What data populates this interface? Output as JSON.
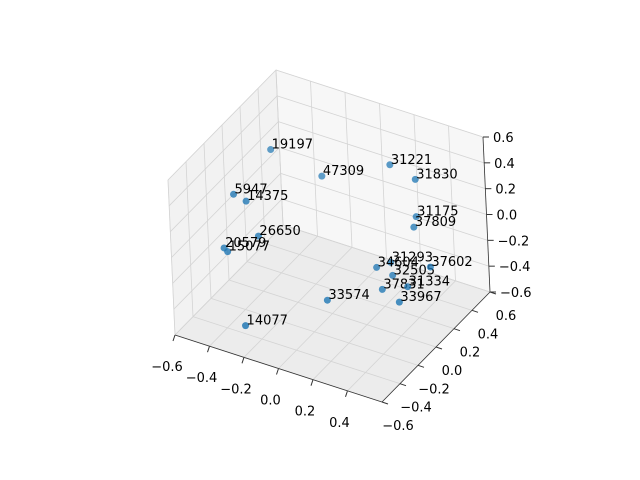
{
  "chart_data": {
    "type": "scatter3d",
    "color": "#1f77b4",
    "labels": [
      "19197",
      "47309",
      "31221",
      "31830",
      "5947",
      "14375",
      "31175",
      "37809",
      "26650",
      "20579",
      "15077",
      "31293",
      "34604",
      "32505",
      "37602",
      "37831",
      "31334",
      "33574",
      "33967",
      "14077"
    ],
    "x": [
      -0.42,
      -0.22,
      0.1,
      0.24,
      -0.39,
      -0.34,
      0.23,
      0.23,
      -0.31,
      -0.41,
      -0.39,
      0.14,
      0.1,
      0.17,
      0.3,
      0.15,
      0.25,
      -0.01,
      0.28,
      -0.26
    ],
    "y": [
      0.18,
      0.35,
      0.5,
      0.51,
      -0.29,
      -0.25,
      0.52,
      0.49,
      -0.19,
      -0.38,
      -0.38,
      0.39,
      0.31,
      0.35,
      0.52,
      0.27,
      0.36,
      -0.03,
      0.21,
      -0.46
    ],
    "z": [
      0.36,
      0.12,
      0.24,
      0.18,
      0.36,
      0.3,
      -0.12,
      -0.18,
      0,
      0,
      -0.02,
      -0.42,
      -0.42,
      -0.48,
      -0.48,
      -0.54,
      -0.54,
      -0.48,
      -0.54,
      -0.48
    ],
    "xlim": [
      -0.6,
      0.6
    ],
    "ylim": [
      -0.6,
      0.6
    ],
    "zlim": [
      -0.6,
      0.6
    ],
    "xticks": [
      {
        "value": -0.6,
        "label": "−0.6"
      },
      {
        "value": -0.4,
        "label": "−0.4"
      },
      {
        "value": -0.2,
        "label": "−0.2"
      },
      {
        "value": 0,
        "label": "0.0"
      },
      0.2,
      0.4
    ],
    "yticks": [
      {
        "value": -0.6,
        "label": "−0.6"
      },
      {
        "value": -0.4,
        "label": "−0.4"
      },
      {
        "value": -0.2,
        "label": "−0.2"
      },
      {
        "value": 0,
        "label": "0.0"
      },
      0.2,
      0.4,
      0.6
    ],
    "zticks": [
      {
        "value": -0.6,
        "label": "−0.6"
      },
      {
        "value": -0.4,
        "label": "−0.4"
      },
      {
        "value": -0.2,
        "label": "−0.2"
      },
      {
        "value": 0,
        "label": "0.0"
      },
      0.2,
      0.4,
      0.6
    ],
    "grid": true
  }
}
